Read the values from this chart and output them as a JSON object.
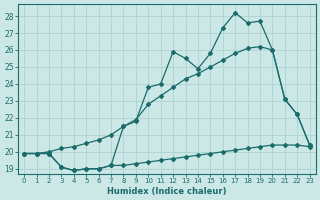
{
  "xlabel": "Humidex (Indice chaleur)",
  "bg_color": "#cce8e6",
  "grid_color": "#b0d5d2",
  "line_color": "#1a6b6b",
  "xlim": [
    -0.5,
    23.5
  ],
  "ylim": [
    18.7,
    28.7
  ],
  "yticks": [
    19,
    20,
    21,
    22,
    23,
    24,
    25,
    26,
    27,
    28
  ],
  "xticks": [
    0,
    1,
    2,
    3,
    4,
    5,
    6,
    7,
    8,
    9,
    10,
    11,
    12,
    13,
    14,
    15,
    16,
    17,
    18,
    19,
    20,
    21,
    22,
    23
  ],
  "lineA_x": [
    0,
    1,
    2,
    3,
    4,
    5,
    6,
    7,
    8,
    9,
    10,
    11,
    12,
    13,
    14,
    15,
    16,
    17,
    18,
    19,
    20,
    21,
    22,
    23
  ],
  "lineA_y": [
    19.9,
    19.9,
    19.9,
    19.1,
    18.9,
    19.0,
    19.0,
    19.2,
    21.5,
    21.8,
    23.8,
    24.0,
    25.9,
    25.5,
    24.9,
    25.8,
    27.3,
    28.2,
    27.6,
    27.7,
    26.0,
    23.1,
    22.2,
    20.4
  ],
  "lineB_x": [
    0,
    1,
    2,
    3,
    4,
    5,
    6,
    7,
    8,
    9,
    10,
    11,
    12,
    13,
    14,
    15,
    16,
    17,
    18,
    19,
    20,
    21,
    22,
    23
  ],
  "lineB_y": [
    19.9,
    19.9,
    20.0,
    20.2,
    20.3,
    20.5,
    20.7,
    21.0,
    21.5,
    21.9,
    22.8,
    23.3,
    23.8,
    24.3,
    24.6,
    25.0,
    25.4,
    25.8,
    26.1,
    26.2,
    26.0,
    23.1,
    22.2,
    20.4
  ],
  "lineC_x": [
    0,
    1,
    2,
    3,
    4,
    5,
    6,
    7,
    8,
    9,
    10,
    11,
    12,
    13,
    14,
    15,
    16,
    17,
    18,
    19,
    20,
    21,
    22,
    23
  ],
  "lineC_y": [
    19.9,
    19.9,
    19.9,
    19.1,
    18.9,
    19.0,
    19.0,
    19.2,
    19.2,
    19.3,
    19.4,
    19.5,
    19.6,
    19.7,
    19.8,
    19.9,
    20.0,
    20.1,
    20.2,
    20.3,
    20.4,
    20.4,
    20.4,
    20.3
  ]
}
